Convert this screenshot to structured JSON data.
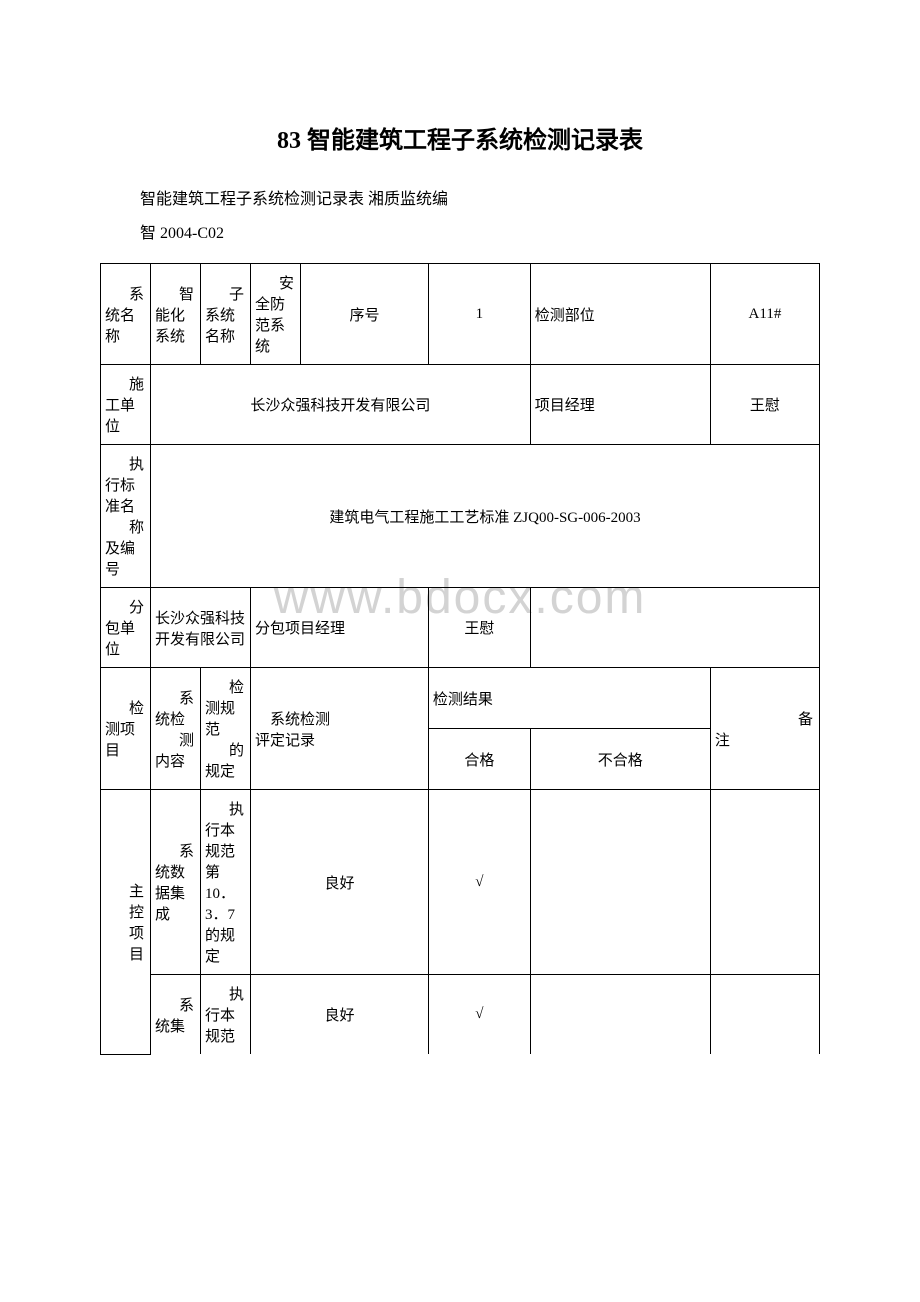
{
  "title": "83 智能建筑工程子系统检测记录表",
  "subtitle": "智能建筑工程子系统检测记录表   湘质监统编",
  "doc_code": "智 2004-C02",
  "watermark": "www.bdocx.com",
  "row1": {
    "c1_cut": "系",
    "c1": "统名称",
    "c2_cut": "智",
    "c2": "能化系统",
    "c3_cut": "子",
    "c3": "系统名称",
    "c4_cut": "安",
    "c4": "全防范系统",
    "c5": "序号",
    "c6": "1",
    "c7": "检测部位",
    "c8": "A11#"
  },
  "row2": {
    "c1_cut": "施",
    "c1": "工单位",
    "c2": "长沙众强科技开发有限公司",
    "c3": "项目经理",
    "c4": "王慰"
  },
  "row3": {
    "c1_cut": "执",
    "c1": "行标准名",
    "c2_cut": "称",
    "c2": "及编号",
    "c3": "建筑电气工程施工工艺标准 ZJQ00-SG-006-2003"
  },
  "row4": {
    "c1_cut": "分",
    "c1": "包单位",
    "c2": "长沙众强科技开发有限公司",
    "c3": "分包项目经理",
    "c4": "王慰"
  },
  "header": {
    "c1_cut": "检",
    "c1": "测项目",
    "c2_cut": "系",
    "c2": "统检",
    "c3_cut": "测",
    "c3": "内容",
    "c4_cut": "检",
    "c4": "测规范",
    "c5_cut": "的",
    "c5": "规定",
    "c6": "系统检测",
    "c7": "评定记录",
    "result": "检测结果",
    "pass": "合格",
    "fail": "不合格",
    "note_cut": "备",
    "note": "注"
  },
  "item1": {
    "c1_cut": "主",
    "c1_cut2": "控",
    "c1_cut3": "项",
    "c1_cut4": "目",
    "c2_cut": "系",
    "c2": "统数据集成",
    "c3_cut": "执",
    "c3": "行本规范第 10．3．7 的规定",
    "c4": "良好",
    "c5": "√"
  },
  "item2": {
    "c2_cut": "系",
    "c2": "统集",
    "c3_cut": "执",
    "c3": "行本规范",
    "c4": "良好",
    "c5": "√"
  }
}
